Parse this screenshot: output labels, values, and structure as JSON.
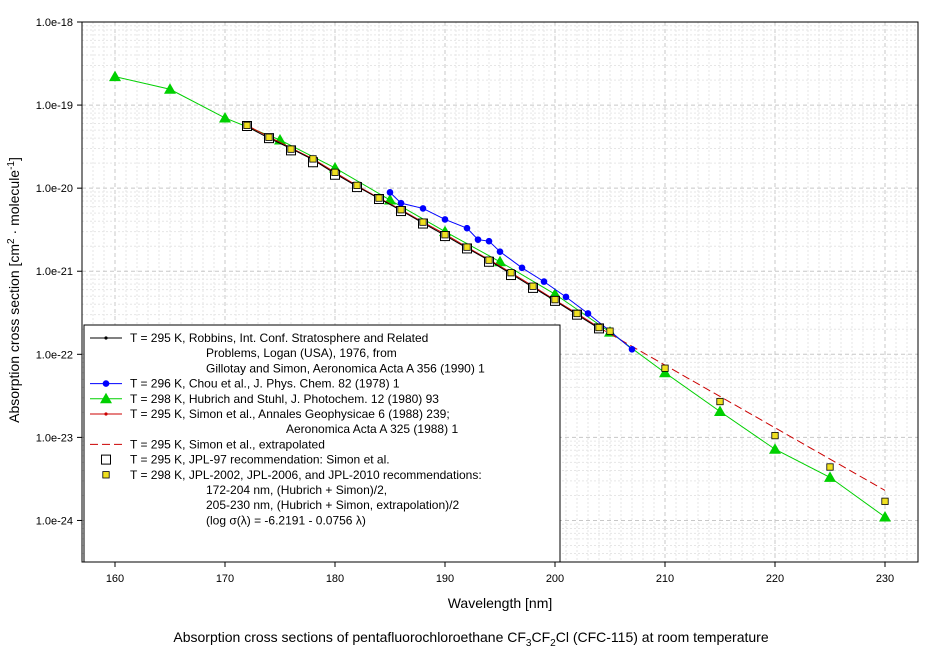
{
  "caption": {
    "prefix": "Absorption cross sections of pentafluorochloroethane CF",
    "sub1": "3",
    "mid1": "CF",
    "sub2": "2",
    "suffix": "Cl (CFC-115) at room temperature"
  },
  "chart_data": {
    "type": "scatter",
    "title": "",
    "xlabel": "Wavelength [nm]",
    "ylabel": "Absorption cross section [cm² · molecule⁻¹]",
    "ylabel_parts": {
      "main": "Absorption cross section [cm",
      "sup1": "2",
      "mid": " · molecule",
      "sup2": "-1",
      "end": "]"
    },
    "xlim": [
      157,
      233
    ],
    "ylim_log10": [
      -24.5,
      -18
    ],
    "yscale": "log",
    "grid": true,
    "x_ticks": [
      160,
      170,
      180,
      190,
      200,
      210,
      220,
      230
    ],
    "x_tick_labels": [
      "160",
      "170",
      "180",
      "190",
      "200",
      "210",
      "220",
      "230"
    ],
    "y_ticks_log10": [
      -24,
      -23,
      -22,
      -21,
      -20,
      -19,
      -18
    ],
    "y_tick_labels": [
      "1.0e-24",
      "1.0e-23",
      "1.0e-22",
      "1.0e-21",
      "1.0e-20",
      "1.0e-19",
      "1.0e-18"
    ],
    "legend_position": "bottom-left",
    "series": [
      {
        "name": "Robbins",
        "label_lines": [
          "T = 295 K, Robbins, Int. Conf. Stratosphere and Related",
          "Problems, Logan (USA), 1976, from",
          "Gillotay and Simon, Aeronomica Acta A 356 (1990) 1"
        ],
        "color": "#000000",
        "marker": "dot",
        "line": "solid",
        "x": [
          172,
          174,
          176,
          178,
          180,
          182,
          184,
          186,
          188,
          190,
          192,
          194,
          196,
          198,
          200,
          202,
          204
        ],
        "y": [
          5.5e-20,
          4e-20,
          3e-20,
          2.2e-20,
          1.5e-20,
          1.05e-20,
          7.5e-21,
          5.4e-21,
          3.8e-21,
          2.7e-21,
          1.9e-21,
          1.35e-21,
          9.3e-22,
          6.4e-22,
          4.4e-22,
          3e-22,
          2.05e-22
        ]
      },
      {
        "name": "Chou",
        "label_lines": [
          "T = 296 K, Chou et al., J. Phys. Chem. 82 (1978) 1"
        ],
        "color": "#0000ff",
        "marker": "circle",
        "line": "solid",
        "x": [
          185,
          186,
          188,
          190,
          192,
          193,
          194,
          195,
          197,
          199,
          201,
          203,
          205,
          207
        ],
        "y": [
          8.9e-21,
          6.6e-21,
          5.7e-21,
          4.2e-21,
          3.3e-21,
          2.4e-21,
          2.3e-21,
          1.72e-21,
          1.1e-21,
          7.5e-22,
          4.9e-22,
          3.1e-22,
          1.9e-22,
          1.15e-22
        ]
      },
      {
        "name": "Hubrich and Stuhl",
        "label_lines": [
          "T = 298 K, Hubrich and Stuhl, J. Photochem. 12 (1980) 93"
        ],
        "color": "#00d000",
        "marker": "triangle",
        "line": "solid",
        "x": [
          160,
          165,
          170,
          175,
          180,
          185,
          190,
          195,
          200,
          205,
          210,
          215,
          220,
          225,
          230
        ],
        "y": [
          2.2e-19,
          1.55e-19,
          7e-20,
          3.8e-20,
          1.75e-20,
          7.2e-21,
          3e-21,
          1.3e-21,
          5.3e-22,
          1.85e-22,
          6e-23,
          2.05e-23,
          7.2e-24,
          3.3e-24,
          1.1e-24
        ]
      },
      {
        "name": "Simon",
        "label_lines": [
          "T = 295 K, Simon et al., Annales Geophysicae 6 (1988) 239;",
          "Aeronomica Acta A 325 (1988) 1"
        ],
        "color": "#cc0000",
        "marker": "dot",
        "line": "solid",
        "x": [
          172,
          174,
          176,
          178,
          180,
          182,
          184,
          186,
          188,
          190,
          192,
          194,
          196,
          198,
          200,
          202,
          204
        ],
        "y": [
          5.7e-20,
          4.15e-20,
          3.05e-20,
          2.25e-20,
          1.55e-20,
          1.07e-20,
          7.6e-21,
          5.5e-21,
          3.9e-21,
          2.8e-21,
          1.95e-21,
          1.38e-21,
          9.6e-22,
          6.6e-22,
          4.5e-22,
          3.1e-22,
          2.1e-22
        ]
      },
      {
        "name": "Simon extrapolated",
        "label_lines": [
          "T = 295 K, Simon et al., extrapolated"
        ],
        "color": "#cc0000",
        "marker": "none",
        "line": "dashed",
        "x": [
          204,
          230
        ],
        "y": [
          2.1e-22,
          2.3e-24
        ]
      },
      {
        "name": "JPL-97",
        "label_lines": [
          "T = 295 K, JPL-97 recommendation: Simon et al."
        ],
        "color": "#000000",
        "marker": "square-open",
        "line": "none",
        "x": [
          172,
          174,
          176,
          178,
          180,
          182,
          184,
          186,
          188,
          190,
          192,
          194,
          196,
          198,
          200,
          202,
          204
        ],
        "y": [
          5.6e-20,
          4e-20,
          2.85e-20,
          2.05e-20,
          1.45e-20,
          1.03e-20,
          7.4e-21,
          5.3e-21,
          3.75e-21,
          2.65e-21,
          1.88e-21,
          1.3e-21,
          9e-22,
          6.3e-22,
          4.4e-22,
          3e-22,
          2.05e-22
        ]
      },
      {
        "name": "JPL-2002",
        "label_lines": [
          "T = 298 K, JPL-2002, JPL-2006, and JPL-2010 recommendations:",
          "172-204 nm, (Hubrich + Simon)/2,",
          "205-230 nm, (Hubrich + Simon, extrapolation)/2",
          "(log σ(λ) = -6.2191 - 0.0756 λ)"
        ],
        "color": "#f0e020",
        "marker": "square-filled",
        "line": "none",
        "x": [
          172,
          174,
          176,
          178,
          180,
          182,
          184,
          186,
          188,
          190,
          192,
          194,
          196,
          198,
          200,
          202,
          204,
          205,
          210,
          215,
          220,
          225,
          230
        ],
        "y": [
          5.7e-20,
          4.1e-20,
          2.95e-20,
          2.25e-20,
          1.55e-20,
          1.08e-20,
          7.6e-21,
          5.5e-21,
          3.9e-21,
          2.75e-21,
          1.95e-21,
          1.36e-21,
          9.6e-22,
          6.6e-22,
          4.55e-22,
          3.1e-22,
          2.1e-22,
          1.9e-22,
          6.8e-23,
          2.7e-23,
          1.05e-23,
          4.4e-24,
          1.7e-24
        ]
      }
    ]
  }
}
